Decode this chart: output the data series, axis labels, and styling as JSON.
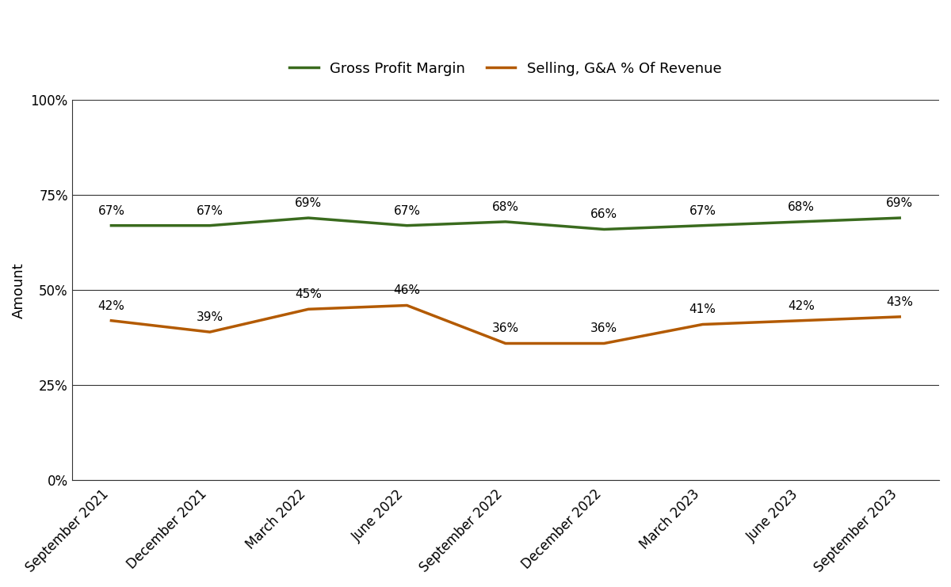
{
  "categories": [
    "September 2021",
    "December 2021",
    "March 2022",
    "June 2022",
    "September 2022",
    "December 2022",
    "March 2023",
    "June 2023",
    "September 2023"
  ],
  "gross_profit_margin": [
    67,
    67,
    69,
    67,
    68,
    66,
    67,
    68,
    69
  ],
  "selling_ga": [
    42,
    39,
    45,
    46,
    36,
    36,
    41,
    42,
    43
  ],
  "gpm_color": "#3a6b1e",
  "sga_color": "#b35a00",
  "gpm_label": "Gross Profit Margin",
  "sga_label": "Selling, G&A % Of Revenue",
  "ylabel": "Amount",
  "ylim": [
    0,
    100
  ],
  "yticks": [
    0,
    25,
    50,
    75,
    100
  ],
  "ytick_labels": [
    "0%",
    "25%",
    "50%",
    "75%",
    "100%"
  ],
  "line_width": 2.5,
  "annotation_fontsize": 11,
  "legend_fontsize": 13,
  "tick_fontsize": 12,
  "ylabel_fontsize": 13,
  "bg_color": "#ffffff",
  "grid_color": "#333333"
}
